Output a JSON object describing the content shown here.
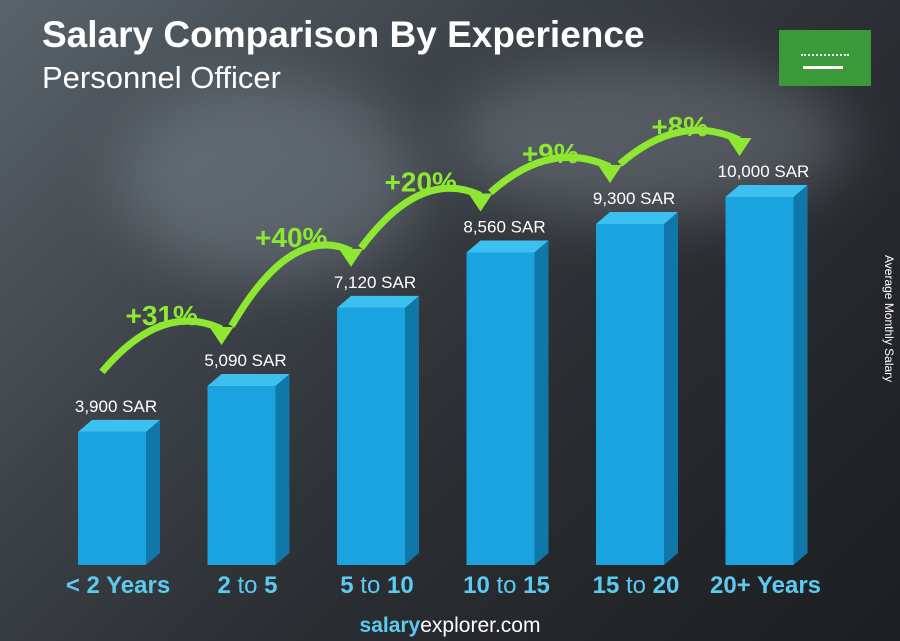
{
  "chart_data": {
    "type": "bar",
    "title": "Salary Comparison By Experience",
    "subtitle": "Personnel Officer",
    "ylabel": "Average Monthly Salary",
    "categories": [
      [
        "< 2",
        " Years",
        ""
      ],
      [
        "2",
        " to ",
        "5"
      ],
      [
        "5",
        " to ",
        "10"
      ],
      [
        "10",
        " to ",
        "15"
      ],
      [
        "15",
        " to ",
        "20"
      ],
      [
        "20+",
        " Years",
        ""
      ]
    ],
    "values": [
      3900,
      5090,
      7120,
      8560,
      9300,
      10000
    ],
    "value_labels": [
      "3,900 SAR",
      "5,090 SAR",
      "7,120 SAR",
      "8,560 SAR",
      "9,300 SAR",
      "10,000 SAR"
    ],
    "changes": [
      "+31%",
      "+40%",
      "+20%",
      "+9%",
      "+8%"
    ],
    "unit": "SAR",
    "colors": {
      "bar": "#1aa3de",
      "bar_side": "#0f78a8",
      "bar_top": "#3cc0f0",
      "category": "#5dcaf0",
      "change": "#8ee832"
    }
  },
  "footer": {
    "brand_bold": "salary",
    "brand_rest": "explorer",
    "brand_tld": ".com"
  },
  "flag": {
    "icon": "saudi-arabia-flag"
  }
}
